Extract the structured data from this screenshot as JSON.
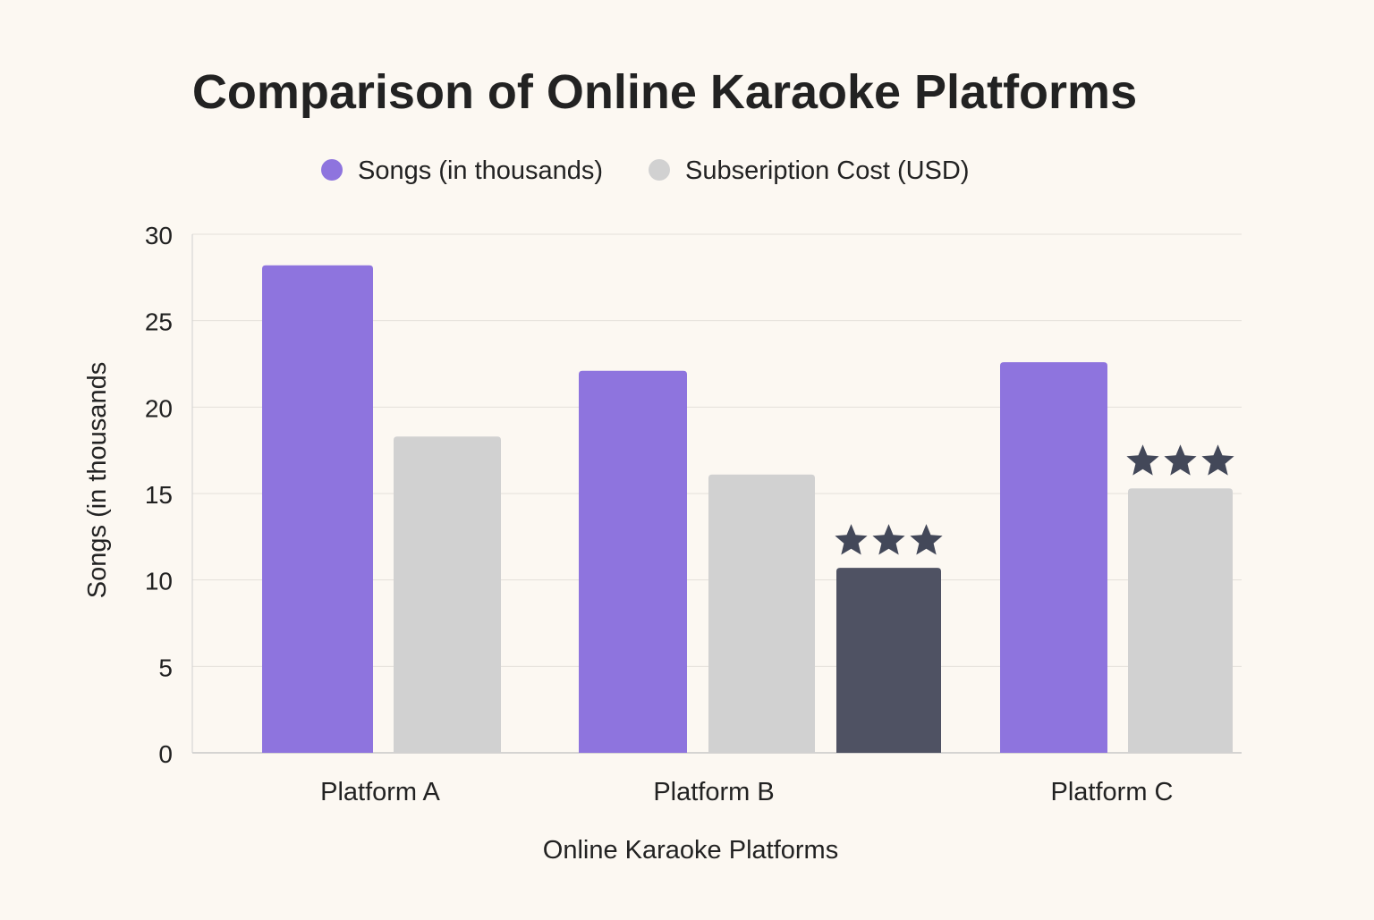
{
  "chart_data": {
    "type": "bar",
    "title": "Comparison of Online Karaoke Platforms",
    "xlabel": "Online Karaoke Platforms",
    "ylabel": "Songs (in thousands",
    "ylim": [
      0,
      30
    ],
    "yticks": [
      "0",
      "5",
      "10",
      "15",
      "20",
      "25",
      "30"
    ],
    "grid": true,
    "legend_position": "top-center",
    "categories": [
      "Platform A",
      "Platform B",
      "Platform C"
    ],
    "series": [
      {
        "name": "Songs (in thousands)",
        "color": "#8e74de",
        "values": [
          28.2,
          22.1,
          22.6
        ]
      },
      {
        "name": "Subseription Cost (USD)",
        "color": "#d1d1d1",
        "values": [
          18.3,
          16.1,
          15.3
        ]
      },
      {
        "name": "",
        "color": "#4f5263",
        "values": [
          null,
          10.7,
          null
        ]
      }
    ],
    "annotations": [
      {
        "category": "Platform B",
        "series_index": 2,
        "stars": 3
      },
      {
        "category": "Platform C",
        "series_index": 1,
        "stars": 3
      }
    ],
    "star_color": "#434859"
  }
}
